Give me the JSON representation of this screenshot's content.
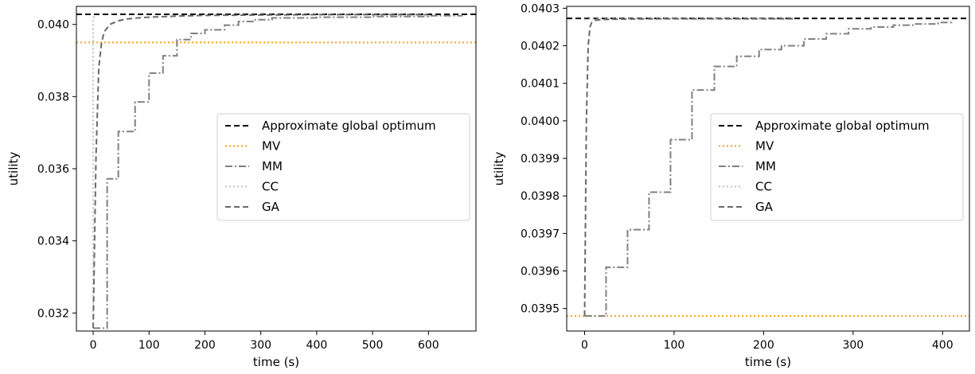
{
  "chart_data": [
    {
      "type": "line",
      "xlabel": "time (s)",
      "ylabel": "utility",
      "xlim": [
        -30,
        685
      ],
      "ylim": [
        0.0315,
        0.0405
      ],
      "xticks": [
        0,
        100,
        200,
        300,
        400,
        500,
        600
      ],
      "yticks": [
        0.032,
        0.034,
        0.036,
        0.038,
        0.04
      ],
      "ytick_labels": [
        "0.032",
        "0.034",
        "0.036",
        "0.038",
        "0.040"
      ],
      "legend_position": "center-right",
      "series": [
        {
          "name": "Approximate global optimum",
          "style": "dashed",
          "color": "#000000",
          "x": [
            -30,
            685
          ],
          "y": [
            0.04028,
            0.04028
          ]
        },
        {
          "name": "MV",
          "style": "dotted",
          "color": "#ffa500",
          "x": [
            -30,
            685
          ],
          "y": [
            0.0395,
            0.0395
          ]
        },
        {
          "name": "MM",
          "style": "dashdot",
          "color": "#808080",
          "step": true,
          "x": [
            0,
            25,
            45,
            75,
            100,
            125,
            150,
            175,
            200,
            235,
            260,
            290,
            320,
            400,
            500,
            600,
            660
          ],
          "y": [
            0.03158,
            0.03572,
            0.03703,
            0.03785,
            0.03865,
            0.03913,
            0.03958,
            0.03975,
            0.03985,
            0.03998,
            0.04008,
            0.04013,
            0.04018,
            0.0402,
            0.04022,
            0.04024,
            0.04025
          ]
        },
        {
          "name": "CC",
          "style": "dotted",
          "color": "#c0c0c0",
          "x": [
            0,
            0,
            2,
            3
          ],
          "y": [
            0.03158,
            0.04015,
            0.04025,
            0.04028
          ]
        },
        {
          "name": "GA",
          "style": "dashed",
          "color": "#696969",
          "x": [
            0,
            5,
            10,
            15,
            20,
            30,
            45,
            60,
            80,
            100,
            150,
            200,
            300,
            400,
            500,
            600
          ],
          "y": [
            0.03158,
            0.0363,
            0.0388,
            0.0395,
            0.0398,
            0.04,
            0.0401,
            0.04015,
            0.04018,
            0.0402,
            0.04023,
            0.04025,
            0.04026,
            0.04027,
            0.04027,
            0.04027
          ]
        }
      ]
    },
    {
      "type": "line",
      "xlabel": "time (s)",
      "ylabel": "utility",
      "xlim": [
        -20,
        430
      ],
      "ylim": [
        0.03944,
        0.040305
      ],
      "xticks": [
        0,
        100,
        200,
        300,
        400
      ],
      "yticks": [
        0.0395,
        0.0396,
        0.0397,
        0.0398,
        0.0399,
        0.04,
        0.0401,
        0.0402,
        0.0403
      ],
      "ytick_labels": [
        "0.0395",
        "0.0396",
        "0.0397",
        "0.0398",
        "0.0399",
        "0.0400",
        "0.0401",
        "0.0402",
        "0.0403"
      ],
      "legend_position": "center-right",
      "series": [
        {
          "name": "Approximate global optimum",
          "style": "dashed",
          "color": "#000000",
          "x": [
            -20,
            430
          ],
          "y": [
            0.040273,
            0.040273
          ]
        },
        {
          "name": "MV",
          "style": "dotted",
          "color": "#ffa500",
          "x": [
            -20,
            430
          ],
          "y": [
            0.03948,
            0.03948
          ]
        },
        {
          "name": "MM",
          "style": "dashdot",
          "color": "#808080",
          "step": true,
          "x": [
            0,
            24,
            48,
            72,
            96,
            120,
            145,
            170,
            195,
            220,
            245,
            270,
            295,
            320,
            345,
            370,
            395,
            410
          ],
          "y": [
            0.03948,
            0.03961,
            0.03971,
            0.03981,
            0.03995,
            0.040082,
            0.040145,
            0.040172,
            0.04019,
            0.0402,
            0.040218,
            0.040232,
            0.040245,
            0.04025,
            0.040255,
            0.040258,
            0.040262,
            0.040265
          ]
        },
        {
          "name": "CC",
          "style": "dotted",
          "color": "#c0c0c0",
          "x": [
            0,
            10,
            235
          ],
          "y": [
            0.04027,
            0.040272,
            0.040272
          ]
        },
        {
          "name": "GA",
          "style": "dashed",
          "color": "#696969",
          "x": [
            0,
            2,
            4,
            6,
            8,
            12,
            20,
            40,
            80,
            150,
            235
          ],
          "y": [
            0.03948,
            0.04,
            0.0402,
            0.04025,
            0.040262,
            0.040268,
            0.04027,
            0.040271,
            0.040272,
            0.040272,
            0.040272
          ]
        }
      ]
    }
  ]
}
